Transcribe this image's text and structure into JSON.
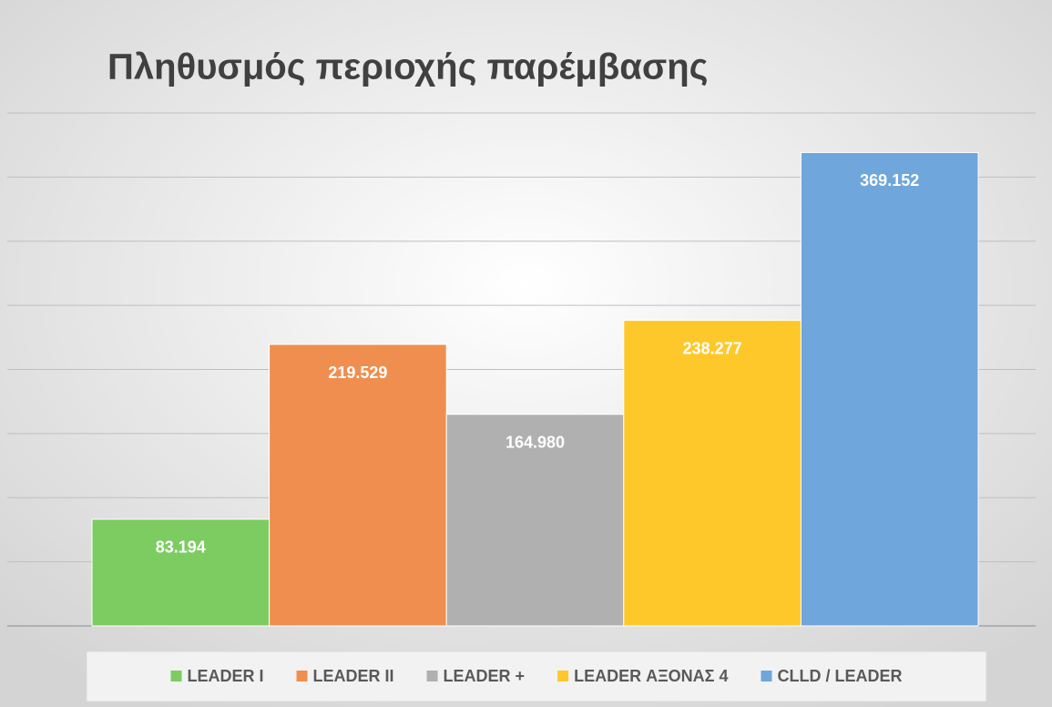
{
  "chart_data": {
    "type": "bar",
    "title": "Πληθυσμός περιοχής παρέμβασης",
    "categories": [
      null
    ],
    "series": [
      {
        "name": "LEADER I",
        "color": "#7dcc62",
        "values": [
          83194
        ],
        "value_labels": [
          "83.194"
        ]
      },
      {
        "name": "LEADER II",
        "color": "#ef8e4f",
        "values": [
          219529
        ],
        "value_labels": [
          "219.529"
        ]
      },
      {
        "name": "LEADER +",
        "color": "#b0b0b0",
        "values": [
          164980
        ],
        "value_labels": [
          "164.980"
        ]
      },
      {
        "name": "LEADER ΑΞΟΝΑΣ 4",
        "color": "#ffc82a",
        "values": [
          238277
        ],
        "value_labels": [
          "238.277"
        ]
      },
      {
        "name": "CLLD / LEADER",
        "color": "#6fa6db",
        "values": [
          369152
        ],
        "value_labels": [
          "369.152"
        ]
      }
    ],
    "ylim": [
      0,
      400000
    ],
    "yticks": [
      0,
      50000,
      100000,
      150000,
      200000,
      250000,
      300000,
      350000,
      400000
    ],
    "grid": true,
    "legend": "bottom"
  }
}
